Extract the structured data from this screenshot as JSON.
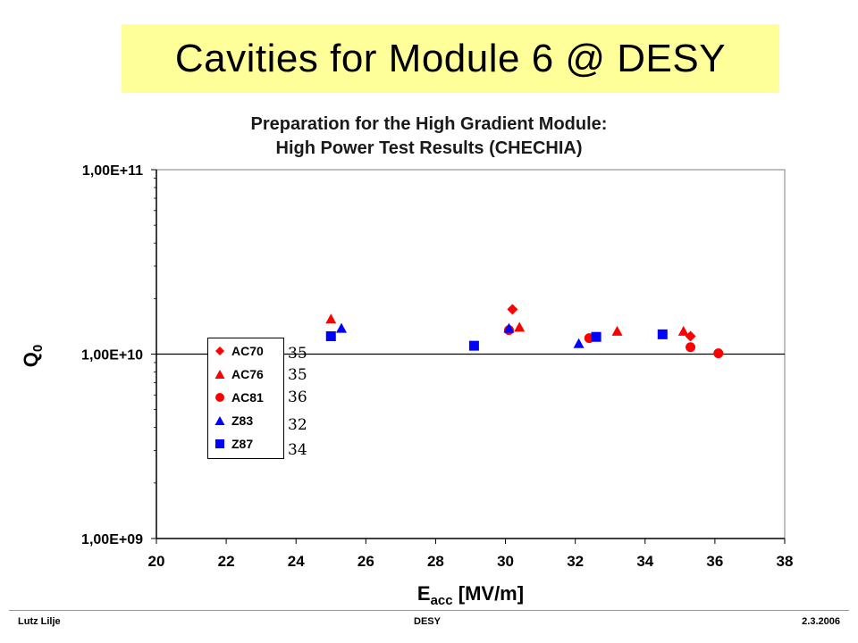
{
  "header": {
    "title": "Cavities for Module 6 @ DESY"
  },
  "chart_data": {
    "type": "scatter",
    "title_lines": [
      "Preparation for the High Gradient Module:",
      "High Power Test Results (CHECHIA)"
    ],
    "xlabel": "E",
    "xlabel_sub": "acc",
    "xlabel_unit": "[MV/m]",
    "ylabel": "Q",
    "ylabel_sub": "0",
    "xlim": [
      20,
      38
    ],
    "ylim": [
      1000000000.0,
      100000000000.0
    ],
    "y_scale": "log",
    "x_ticks": [
      "20",
      "22",
      "24",
      "26",
      "28",
      "30",
      "32",
      "34",
      "36",
      "38"
    ],
    "y_ticks": [
      "1,00E+09",
      "1,00E+10",
      "1,00E+11"
    ],
    "grid": "single horizontal line at 1,00E+10",
    "legend_position": "left-middle inside plot",
    "series": [
      {
        "name": "AC70",
        "marker": "diamond",
        "color": "#ff0000",
        "points": [
          [
            30.2,
            17500000000.0
          ],
          [
            35.3,
            12500000000.0
          ]
        ]
      },
      {
        "name": "AC76",
        "marker": "triangle",
        "color": "#ff0000",
        "points": [
          [
            25.0,
            15500000000.0
          ],
          [
            30.4,
            14000000000.0
          ],
          [
            33.2,
            13300000000.0
          ],
          [
            35.1,
            13300000000.0
          ]
        ]
      },
      {
        "name": "AC81",
        "marker": "circle",
        "color": "#ff0000",
        "points": [
          [
            30.1,
            13500000000.0
          ],
          [
            32.4,
            12200000000.0
          ],
          [
            35.3,
            10900000000.0
          ],
          [
            36.1,
            10100000000.0
          ]
        ]
      },
      {
        "name": "Z83",
        "marker": "triangle",
        "color": "#0000ff",
        "points": [
          [
            25.3,
            13800000000.0
          ],
          [
            30.1,
            13800000000.0
          ],
          [
            32.1,
            11400000000.0
          ]
        ]
      },
      {
        "name": "Z87",
        "marker": "square",
        "color": "#0000ff",
        "points": [
          [
            25.0,
            12500000000.0
          ],
          [
            29.1,
            11100000000.0
          ],
          [
            32.6,
            12400000000.0
          ],
          [
            34.5,
            12800000000.0
          ]
        ]
      }
    ],
    "legend_annotations": [
      "35",
      "35",
      "36",
      "32",
      "34"
    ]
  },
  "footer": {
    "left": "Lutz Lilje",
    "center": "DESY",
    "right": "2.3.2006"
  }
}
